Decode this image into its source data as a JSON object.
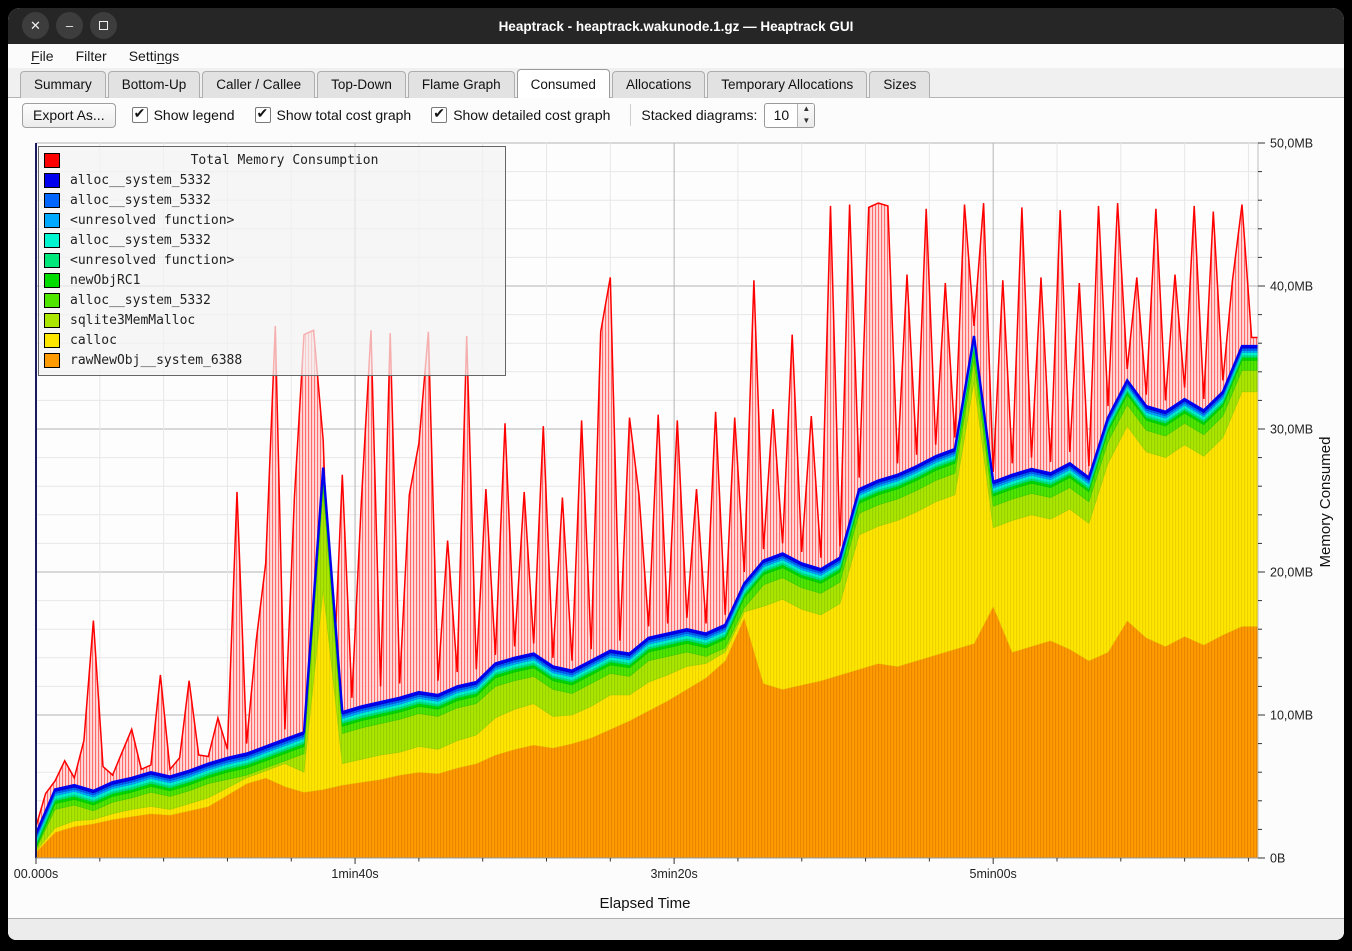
{
  "window": {
    "title": "Heaptrack - heaptrack.wakunode.1.gz — Heaptrack GUI",
    "controls": [
      "close",
      "minimize",
      "maximize"
    ]
  },
  "menu": {
    "items": [
      {
        "label": "File",
        "underline": 0
      },
      {
        "label": "Filter",
        "underline": -1
      },
      {
        "label": "Settings",
        "underline": 5
      }
    ]
  },
  "tabs": {
    "items": [
      "Summary",
      "Bottom-Up",
      "Caller / Callee",
      "Top-Down",
      "Flame Graph",
      "Consumed",
      "Allocations",
      "Temporary Allocations",
      "Sizes"
    ],
    "active": "Consumed"
  },
  "toolbar": {
    "export_label": "Export As...",
    "checkboxes": [
      {
        "label": "Show legend",
        "checked": true
      },
      {
        "label": "Show total cost graph",
        "checked": true
      },
      {
        "label": "Show detailed cost graph",
        "checked": true
      }
    ],
    "stacked_label": "Stacked diagrams:",
    "stacked_value": "10"
  },
  "legend": {
    "title": "Total Memory Consumption",
    "title_color": "#ff0000",
    "entries": [
      {
        "name": "alloc__system_5332",
        "color": "#0000ee"
      },
      {
        "name": "alloc__system_5332",
        "color": "#0066ff"
      },
      {
        "name": "<unresolved function>",
        "color": "#00aaff"
      },
      {
        "name": "alloc__system_5332",
        "color": "#00f5d0"
      },
      {
        "name": "<unresolved function>",
        "color": "#00e87c"
      },
      {
        "name": "newObjRC1",
        "color": "#00dc00"
      },
      {
        "name": "alloc__system_5332",
        "color": "#50e600"
      },
      {
        "name": "sqlite3MemMalloc",
        "color": "#aae600"
      },
      {
        "name": "calloc",
        "color": "#ffe600"
      },
      {
        "name": "rawNewObj__system_6388",
        "color": "#ff9b00"
      }
    ]
  },
  "axes": {
    "x_title": "Elapsed Time",
    "y_title": "Memory Consumed",
    "x_ticks": [
      {
        "label": "00.000s",
        "t": 0
      },
      {
        "label": "1min40s",
        "t": 100
      },
      {
        "label": "3min20s",
        "t": 200
      },
      {
        "label": "5min00s",
        "t": 300
      }
    ],
    "y_ticks": [
      {
        "label": "0B",
        "v": 0
      },
      {
        "label": "10,0MB",
        "v": 10
      },
      {
        "label": "20,0MB",
        "v": 20
      },
      {
        "label": "30,0MB",
        "v": 30
      },
      {
        "label": "40,0MB",
        "v": 40
      },
      {
        "label": "50,0MB",
        "v": 50
      }
    ]
  },
  "chart_data": {
    "type": "area",
    "title": "Total Memory Consumption",
    "xlabel": "Elapsed Time",
    "ylabel": "Memory Consumed",
    "x_unit": "seconds",
    "y_unit": "MB",
    "xlim": [
      0,
      383
    ],
    "ylim": [
      0,
      50
    ],
    "x_minor_step_s": 20,
    "x_major_step_s": 100,
    "y_minor_step_mb": 2,
    "y_major_step_mb": 10,
    "total_series": {
      "name": "Total Memory Consumption",
      "color": "#ff0000",
      "fill": "#ffd4d4",
      "hatch": "#ff6a6a",
      "t0_s": 0,
      "dt_s": 3,
      "values_mb": [
        2.2,
        4.5,
        5.4,
        6.8,
        5.6,
        8.2,
        16.6,
        6.4,
        5.8,
        7.4,
        9.0,
        6.2,
        6.5,
        12.8,
        6.2,
        7.0,
        12.4,
        7.2,
        7.1,
        9.8,
        7.6,
        25.6,
        8.0,
        15.2,
        20.6,
        37.2,
        9.0,
        25.2,
        36.6,
        36.9,
        29.2,
        11.0,
        26.8,
        11.2,
        25.0,
        36.9,
        12.0,
        36.7,
        12.2,
        25.4,
        29.0,
        36.8,
        12.4,
        22.2,
        13.0,
        36.5,
        13.2,
        25.8,
        14.2,
        30.4,
        14.8,
        25.6,
        15.0,
        30.2,
        14.0,
        25.2,
        13.8,
        30.6,
        14.6,
        36.8,
        40.6,
        15.2,
        30.8,
        25.4,
        16.2,
        31.0,
        16.4,
        30.6,
        16.8,
        25.8,
        16.4,
        31.2,
        17.0,
        30.8,
        20.0,
        40.4,
        21.6,
        31.4,
        22.0,
        36.6,
        21.4,
        30.9,
        21.0,
        45.6,
        21.8,
        45.7,
        26.6,
        45.5,
        45.8,
        45.6,
        27.6,
        40.8,
        28.2,
        45.4,
        28.9,
        40.2,
        29.4,
        45.7,
        37.2,
        45.8,
        27.0,
        40.4,
        27.6,
        45.5,
        28.0,
        40.6,
        27.7,
        45.3,
        28.4,
        40.2,
        27.4,
        45.6,
        31.6,
        45.8,
        34.2,
        40.6,
        32.4,
        45.4,
        32.0,
        40.8,
        32.9,
        45.6,
        32.1,
        45.2,
        33.4,
        40.4,
        45.7,
        36.4
      ]
    },
    "consumed_line_color": "#0000ee",
    "stacked_series_bottom_to_top": [
      {
        "name": "rawNewObj__system_6388",
        "color": "#ff9b00",
        "hatch": "#e88600",
        "t0_s": 0,
        "dt_s": 6,
        "values_mb": [
          0.4,
          1.8,
          2.2,
          2.4,
          2.7,
          2.9,
          3.1,
          3.0,
          3.3,
          3.6,
          4.4,
          5.2,
          5.6,
          5.0,
          4.6,
          4.8,
          5.1,
          5.3,
          5.5,
          5.8,
          6.0,
          5.9,
          6.3,
          6.6,
          7.2,
          7.6,
          7.9,
          7.7,
          8.0,
          8.4,
          9.0,
          9.6,
          10.3,
          11.0,
          11.8,
          12.6,
          13.8,
          16.8,
          12.2,
          11.8,
          12.1,
          12.4,
          12.8,
          13.2,
          13.6,
          13.4,
          13.8,
          14.2,
          14.6,
          15.0,
          17.6,
          14.4,
          14.8,
          15.2,
          14.6,
          13.8,
          14.4,
          16.6,
          15.4,
          14.8,
          15.5,
          14.9,
          15.6,
          16.2
        ]
      },
      {
        "name": "calloc",
        "color": "#ffe600",
        "hatch": "#ecd200",
        "t0_s": 0,
        "dt_s": 6,
        "values_mb": [
          0.1,
          0.3,
          0.4,
          0.3,
          0.4,
          0.5,
          0.5,
          0.4,
          0.5,
          0.6,
          0.5,
          0.4,
          0.5,
          1.6,
          1.4,
          14.0,
          1.5,
          1.6,
          1.7,
          1.6,
          1.8,
          1.7,
          1.9,
          2.0,
          2.6,
          2.8,
          2.9,
          2.2,
          2.0,
          2.2,
          2.4,
          1.8,
          2.0,
          1.8,
          1.6,
          1.0,
          0.6,
          0.4,
          5.4,
          6.3,
          5.3,
          4.6,
          5.0,
          9.4,
          9.6,
          10.2,
          10.4,
          10.7,
          10.8,
          18.3,
          5.5,
          9.2,
          9.2,
          8.5,
          9.8,
          9.6,
          13.2,
          13.6,
          13.0,
          13.2,
          13.4,
          13.2,
          13.8,
          16.4
        ]
      },
      {
        "name": "sqlite3MemMalloc",
        "color": "#aae600",
        "hatch": "#97cf00",
        "t0_s": 0,
        "dt_s": 6,
        "values_mb": [
          0.1,
          1.3,
          1.1,
          0.6,
          0.8,
          0.8,
          1.0,
          0.9,
          0.9,
          1.0,
          0.6,
          0.2,
          0.2,
          0.2,
          1.3,
          7.0,
          2.1,
          2.2,
          2.2,
          2.3,
          2.3,
          2.3,
          2.3,
          2.2,
          2.2,
          2.0,
          1.9,
          1.9,
          1.5,
          1.6,
          1.5,
          1.3,
          1.5,
          1.3,
          1.0,
          0.5,
          0.3,
          0.3,
          1.5,
          1.5,
          1.5,
          1.5,
          1.5,
          1.5,
          1.5,
          1.5,
          1.5,
          1.5,
          1.5,
          1.5,
          1.5,
          1.5,
          1.5,
          1.5,
          1.5,
          1.5,
          1.5,
          1.5,
          1.5,
          1.5,
          1.5,
          1.5,
          1.5,
          1.5
        ]
      },
      {
        "name": "alloc__system_5332",
        "color": "#50e600",
        "hatch": "#3fcc00",
        "t0_s": 0,
        "dt_s": 6,
        "values_mb": [
          0.1,
          0.4,
          0.4,
          0.4,
          0.4,
          0.4,
          0.4,
          0.4,
          0.4,
          0.4,
          0.5,
          0.5,
          0.5,
          0.5,
          0.5,
          0.5,
          0.5,
          0.5,
          0.5,
          0.5,
          0.5,
          0.5,
          0.5,
          0.5,
          0.6,
          0.6,
          0.6,
          0.6,
          0.6,
          0.6,
          0.6,
          0.6,
          0.6,
          0.6,
          0.6,
          0.6,
          0.6,
          0.7,
          0.7,
          0.7,
          0.7,
          0.7,
          0.7,
          0.7,
          0.7,
          0.7,
          0.7,
          0.7,
          0.7,
          0.7,
          0.7,
          0.7,
          0.7,
          0.7,
          0.7,
          0.7,
          0.7,
          0.7,
          0.7,
          0.7,
          0.7,
          0.7,
          0.7,
          0.7
        ]
      },
      {
        "name": "newObjRC1",
        "color": "#00dc00",
        "hatch": "#00c400",
        "approx_constant_mb": 0.2
      },
      {
        "name": "<unresolved function>",
        "color": "#00e87c",
        "hatch": "#00cc6a",
        "approx_constant_mb": 0.15
      },
      {
        "name": "alloc__system_5332",
        "color": "#00f5d0",
        "hatch": "#00dcb8",
        "approx_constant_mb": 0.2
      },
      {
        "name": "<unresolved function>",
        "color": "#00aaff",
        "hatch": "#0092e6",
        "approx_constant_mb": 0.15
      },
      {
        "name": "alloc__system_5332",
        "color": "#0066ff",
        "hatch": "#0052d9",
        "approx_constant_mb": 0.15
      },
      {
        "name": "alloc__system_5332",
        "color": "#0000ee",
        "hatch": "#0000cc",
        "approx_constant_mb": 0.15
      }
    ]
  }
}
